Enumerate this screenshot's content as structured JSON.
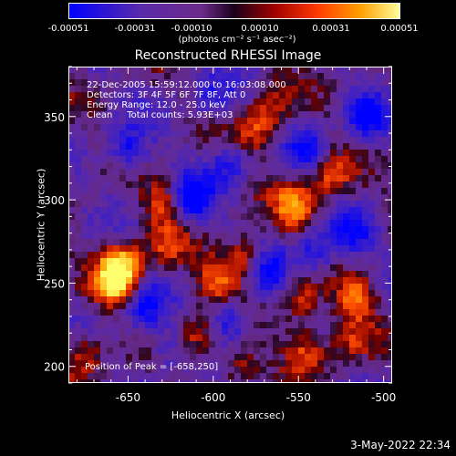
{
  "colorbar": {
    "tick_labels": [
      "-0.00051",
      "-0.00031",
      "-0.00010",
      "0.00010",
      "0.00031",
      "0.00051"
    ],
    "units": "(photons cm⁻² s⁻¹ asec⁻²)"
  },
  "plot": {
    "title": "Reconstructed RHESSI Image",
    "xlabel": "Heliocentric X (arcsec)",
    "ylabel": "Heliocentric Y (arcsec)",
    "info": {
      "time": "22-Dec-2005 15:59:12.000 to 16:03:08.000",
      "detectors": "Detectors: 3F 4F 5F 6F 7F 8F, Att 0",
      "energy": "Energy Range: 12.0 - 25.0 keV",
      "clean": "Clean     Total counts: 5.93E+03"
    },
    "peak": "Position of Peak = [-658,250]"
  },
  "date_stamp": "3-May-2022 22:34",
  "colors": {
    "background": "#000000",
    "cmap": [
      "#0000ff",
      "#3a1fc8",
      "#5a2aa8",
      "#6d2b8a",
      "#2a0a2a",
      "#7a0000",
      "#c81e00",
      "#ff5000",
      "#ffa000",
      "#ffff60"
    ]
  },
  "chart_data": {
    "type": "heatmap",
    "title": "Reconstructed RHESSI Image",
    "xlabel": "Heliocentric X (arcsec)",
    "ylabel": "Heliocentric Y (arcsec)",
    "xlim": [
      -685,
      -495
    ],
    "ylim": [
      190,
      380
    ],
    "x_ticks": [
      -650,
      -600,
      -550,
      -500
    ],
    "y_ticks": [
      200,
      250,
      300,
      350
    ],
    "colorbar_range": [
      -0.00051,
      0.00051
    ],
    "colorbar_ticks": [
      -0.00051,
      -0.00031,
      -0.0001,
      0.0001,
      0.00031,
      0.00051
    ],
    "colorbar_unit": "(photons cm⁻² s⁻¹ asec⁻²)",
    "peak_position": [
      -658,
      250
    ],
    "sources": [
      {
        "x": -658,
        "y": 250,
        "level": 1.0
      },
      {
        "x": -653,
        "y": 262,
        "level": 0.9
      },
      {
        "x": -552,
        "y": 296,
        "level": 0.85
      },
      {
        "x": -580,
        "y": 265,
        "level": 0.75
      },
      {
        "x": -598,
        "y": 252,
        "level": 0.7
      },
      {
        "x": -628,
        "y": 298,
        "level": 0.65
      },
      {
        "x": -516,
        "y": 241,
        "level": 0.75
      },
      {
        "x": -548,
        "y": 238,
        "level": 0.6
      },
      {
        "x": -575,
        "y": 340,
        "level": 0.6
      },
      {
        "x": -531,
        "y": 314,
        "level": 0.65
      },
      {
        "x": -610,
        "y": 218,
        "level": 0.6
      },
      {
        "x": -585,
        "y": 202,
        "level": 0.55
      },
      {
        "x": -545,
        "y": 210,
        "level": 0.6
      },
      {
        "x": -520,
        "y": 215,
        "level": 0.5
      },
      {
        "x": -675,
        "y": 208,
        "level": 0.55
      },
      {
        "x": -627,
        "y": 272,
        "level": 0.5
      },
      {
        "x": -565,
        "y": 355,
        "level": 0.45
      }
    ],
    "sinks": [
      {
        "x": -613,
        "y": 300,
        "level": -1.0
      },
      {
        "x": -568,
        "y": 257,
        "level": -0.85
      },
      {
        "x": -590,
        "y": 228,
        "level": -0.7
      },
      {
        "x": -540,
        "y": 268,
        "level": -0.7
      },
      {
        "x": -640,
        "y": 235,
        "level": -0.75
      },
      {
        "x": -650,
        "y": 330,
        "level": -0.7
      },
      {
        "x": -510,
        "y": 348,
        "level": -0.75
      },
      {
        "x": -545,
        "y": 330,
        "level": -0.6
      },
      {
        "x": -600,
        "y": 360,
        "level": -0.5
      },
      {
        "x": -517,
        "y": 280,
        "level": -0.65
      },
      {
        "x": -625,
        "y": 210,
        "level": -0.5
      },
      {
        "x": -590,
        "y": 322,
        "level": -0.55
      }
    ]
  }
}
